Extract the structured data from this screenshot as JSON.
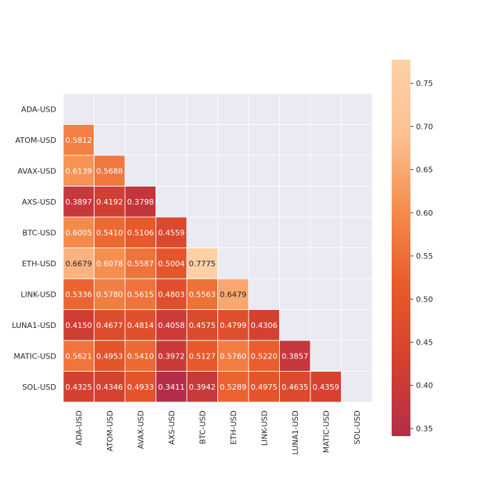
{
  "chart_data": {
    "type": "heatmap",
    "title": "",
    "xlabel": "",
    "ylabel": "",
    "rows": [
      "ADA-USD",
      "ATOM-USD",
      "AVAX-USD",
      "AXS-USD",
      "BTC-USD",
      "ETH-USD",
      "LINK-USD",
      "LUNA1-USD",
      "MATIC-USD",
      "SOL-USD"
    ],
    "columns": [
      "ADA-USD",
      "ATOM-USD",
      "AVAX-USD",
      "AXS-USD",
      "BTC-USD",
      "ETH-USD",
      "LINK-USD",
      "LUNA1-USD",
      "MATIC-USD",
      "SOL-USD"
    ],
    "mask": "upper-triangle-including-diagonal",
    "values": [
      [
        null,
        null,
        null,
        null,
        null,
        null,
        null,
        null,
        null,
        null
      ],
      [
        0.5812,
        null,
        null,
        null,
        null,
        null,
        null,
        null,
        null,
        null
      ],
      [
        0.6139,
        0.5688,
        null,
        null,
        null,
        null,
        null,
        null,
        null,
        null
      ],
      [
        0.3897,
        0.4192,
        0.3798,
        null,
        null,
        null,
        null,
        null,
        null,
        null
      ],
      [
        0.6005,
        0.541,
        0.5106,
        0.4559,
        null,
        null,
        null,
        null,
        null,
        null
      ],
      [
        0.6679,
        0.6078,
        0.5587,
        0.5004,
        0.7775,
        null,
        null,
        null,
        null,
        null
      ],
      [
        0.5336,
        0.578,
        0.5615,
        0.4803,
        0.5563,
        0.6479,
        null,
        null,
        null,
        null
      ],
      [
        0.415,
        0.4677,
        0.4814,
        0.4058,
        0.4575,
        0.4799,
        0.4306,
        null,
        null,
        null
      ],
      [
        0.5621,
        0.4953,
        0.541,
        0.3972,
        0.5127,
        0.576,
        0.522,
        0.3857,
        null,
        null
      ],
      [
        0.4325,
        0.4346,
        0.4933,
        0.3411,
        0.3942,
        0.5289,
        0.4975,
        0.4635,
        0.4359,
        null
      ]
    ],
    "colorbar": {
      "min": 0.3411,
      "max": 0.7775,
      "ticks": [
        0.35,
        0.4,
        0.45,
        0.5,
        0.55,
        0.6,
        0.65,
        0.7,
        0.75
      ],
      "tick_labels": [
        "0.35",
        "0.40",
        "0.45",
        "0.50",
        "0.55",
        "0.60",
        "0.65",
        "0.70",
        "0.75"
      ],
      "colormap": "icefire-warm (red to orange to peach)",
      "stops": [
        "#b42e4a",
        "#d44030",
        "#e85a2a",
        "#f58c4c",
        "#fcc191",
        "#fdd0a6"
      ]
    },
    "background_color": "#eaeaf2",
    "grid": true
  }
}
